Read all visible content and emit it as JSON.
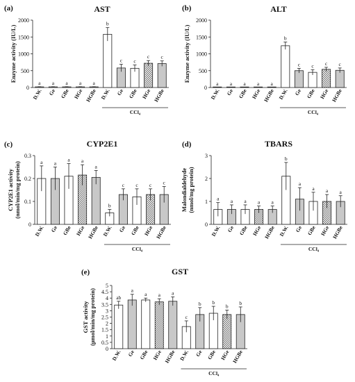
{
  "chart_data": [
    {
      "panel": "(a)",
      "title": "AST",
      "type": "bar",
      "ylabel": "Enzyme activity (IU/L)",
      "ylim": [
        0,
        2000
      ],
      "yticks": [
        "0",
        "500",
        "1000",
        "1500",
        "2000"
      ],
      "categories": [
        "D.W.",
        "Ge",
        "GBe",
        "HGe",
        "HGBe",
        "D.W.",
        "Ge",
        "GBe",
        "HGe",
        "HGBe"
      ],
      "values": [
        20,
        20,
        20,
        20,
        20,
        1580,
        580,
        570,
        720,
        710
      ],
      "errors": [
        5,
        5,
        5,
        5,
        5,
        200,
        110,
        100,
        80,
        80
      ],
      "labels": [
        "a",
        "a",
        "a",
        "a",
        "a",
        "b",
        "c",
        "c",
        "c",
        "c"
      ],
      "fills": [
        "white",
        "white",
        "white",
        "white",
        "white",
        "white",
        "gray",
        "white",
        "checker",
        "gray"
      ],
      "group_label": "CCl₄"
    },
    {
      "panel": "(b)",
      "title": "ALT",
      "type": "bar",
      "ylabel": "Enzyme activity (IU/L)",
      "ylim": [
        0,
        2000
      ],
      "yticks": [
        "0",
        "500",
        "1000",
        "1500",
        "2000"
      ],
      "categories": [
        "D.W.",
        "Ge",
        "GBe",
        "HGe",
        "HGBe",
        "D.W.",
        "Ge",
        "GBe",
        "HGe",
        "HGBe"
      ],
      "values": [
        0,
        0,
        0,
        0,
        0,
        1240,
        500,
        450,
        540,
        510
      ],
      "errors": [
        0,
        0,
        0,
        0,
        0,
        110,
        70,
        80,
        60,
        70
      ],
      "labels": [
        "a",
        "a",
        "a",
        "a",
        "a",
        "b",
        "c",
        "c",
        "c",
        "c"
      ],
      "fills": [
        "white",
        "white",
        "white",
        "white",
        "white",
        "white",
        "gray",
        "white",
        "checker",
        "gray"
      ],
      "group_label": "CCl₄"
    },
    {
      "panel": "(c)",
      "title": "CYP2E1",
      "type": "bar",
      "ylabel": [
        "CYP2E1 activity",
        "(nmol/min/mg protein)"
      ],
      "ylim": [
        0,
        0.3
      ],
      "yticks": [
        "0",
        "0.1",
        "0.2",
        "0.3"
      ],
      "categories": [
        "D.W.",
        "Ge",
        "GBe",
        "HGe",
        "HGBe",
        "D.W.",
        "Ge",
        "GBe",
        "HGe",
        "HGBe"
      ],
      "values": [
        0.2,
        0.2,
        0.21,
        0.215,
        0.205,
        0.05,
        0.13,
        0.12,
        0.13,
        0.13
      ],
      "errors": [
        0.055,
        0.05,
        0.055,
        0.045,
        0.03,
        0.015,
        0.025,
        0.035,
        0.025,
        0.035
      ],
      "labels": [
        "a",
        "a",
        "a",
        "a",
        "a",
        "b",
        "c",
        "c",
        "c",
        "c"
      ],
      "fills": [
        "white",
        "gray",
        "white",
        "checker",
        "gray",
        "white",
        "gray",
        "white",
        "checker",
        "gray"
      ],
      "group_label": "CCl₄"
    },
    {
      "panel": "(d)",
      "title": "TBARS",
      "type": "bar",
      "ylabel": [
        "Malondialdehyde",
        "(nmol/mg protein)"
      ],
      "ylim": [
        0,
        3
      ],
      "yticks": [
        "0",
        "1",
        "2",
        "3"
      ],
      "categories": [
        "D.W.",
        "Ge",
        "GBe",
        "HGe",
        "HGBe",
        "D.W.",
        "Ge",
        "GBe",
        "HGe",
        "HGBe"
      ],
      "values": [
        0.65,
        0.65,
        0.65,
        0.65,
        0.65,
        2.1,
        1.1,
        1.0,
        1.0,
        1.0
      ],
      "errors": [
        0.3,
        0.2,
        0.2,
        0.15,
        0.15,
        0.6,
        0.5,
        0.4,
        0.3,
        0.25
      ],
      "labels": [
        "a",
        "a",
        "a",
        "a",
        "a",
        "b",
        "a",
        "a",
        "a",
        "a"
      ],
      "fills": [
        "white",
        "gray",
        "white",
        "checker",
        "gray",
        "white",
        "gray",
        "white",
        "checker",
        "gray"
      ],
      "group_label": "CCl₄"
    },
    {
      "panel": "(e)",
      "title": "GST",
      "type": "bar",
      "ylabel": [
        "GST activity",
        "(μmol/min/mg protein)"
      ],
      "ylim": [
        0,
        5
      ],
      "yticks": [
        "0",
        "0.5",
        "1",
        "1.5",
        "2",
        "2.5",
        "3",
        "3.5",
        "4",
        "4.5",
        "5"
      ],
      "categories": [
        "D.W.",
        "Ge",
        "GBe",
        "HGe",
        "HGBe",
        "D.W.",
        "Ge",
        "GBe",
        "HGe",
        "HGBe"
      ],
      "values": [
        3.45,
        3.85,
        3.85,
        3.7,
        3.75,
        1.75,
        2.7,
        2.8,
        2.7,
        2.7
      ],
      "errors": [
        0.3,
        0.45,
        0.15,
        0.25,
        0.35,
        0.45,
        0.55,
        0.55,
        0.35,
        0.6
      ],
      "labels": [
        "ab",
        "a",
        "a",
        "a",
        "a",
        "c",
        "b",
        "b",
        "b",
        "b"
      ],
      "fills": [
        "white",
        "gray",
        "white",
        "checker",
        "gray",
        "white",
        "gray",
        "white",
        "checker",
        "gray"
      ],
      "group_label": "CCl₄"
    }
  ]
}
